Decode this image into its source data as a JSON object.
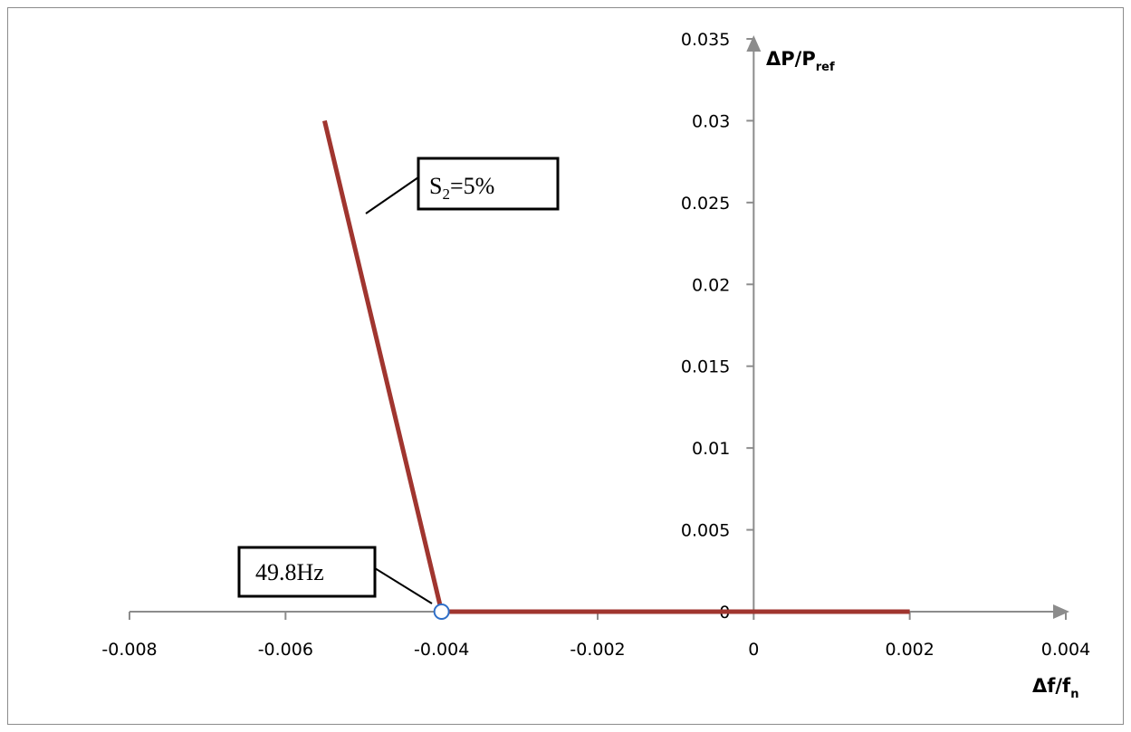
{
  "chart_data": {
    "type": "line",
    "xlabel": "Δf/f",
    "xlabel_sub": "n",
    "ylabel": "ΔP/P",
    "ylabel_sub": "ref",
    "xlim": [
      -0.008,
      0.004
    ],
    "ylim": [
      0,
      0.035
    ],
    "x_ticks": [
      "-0.008",
      "-0.006",
      "-0.004",
      "-0.002",
      "0",
      "0.002",
      "0.004"
    ],
    "y_ticks": [
      "0",
      "0.005",
      "0.01",
      "0.015",
      "0.02",
      "0.025",
      "0.03",
      "0.035"
    ],
    "grid": false,
    "series": [
      {
        "color": "#a0352f",
        "points": [
          {
            "x": -0.0055,
            "y": 0.03
          },
          {
            "x": -0.004,
            "y": 0
          },
          {
            "x": 0.002,
            "y": 0
          }
        ]
      }
    ],
    "marker": {
      "x": -0.004,
      "y": 0,
      "color": "#2f6fc8"
    },
    "annotations": [
      {
        "id": "droop",
        "main": "S",
        "sub": "2",
        "suffix": "=5%"
      },
      {
        "id": "freq",
        "text": "49.8Hz"
      }
    ]
  }
}
